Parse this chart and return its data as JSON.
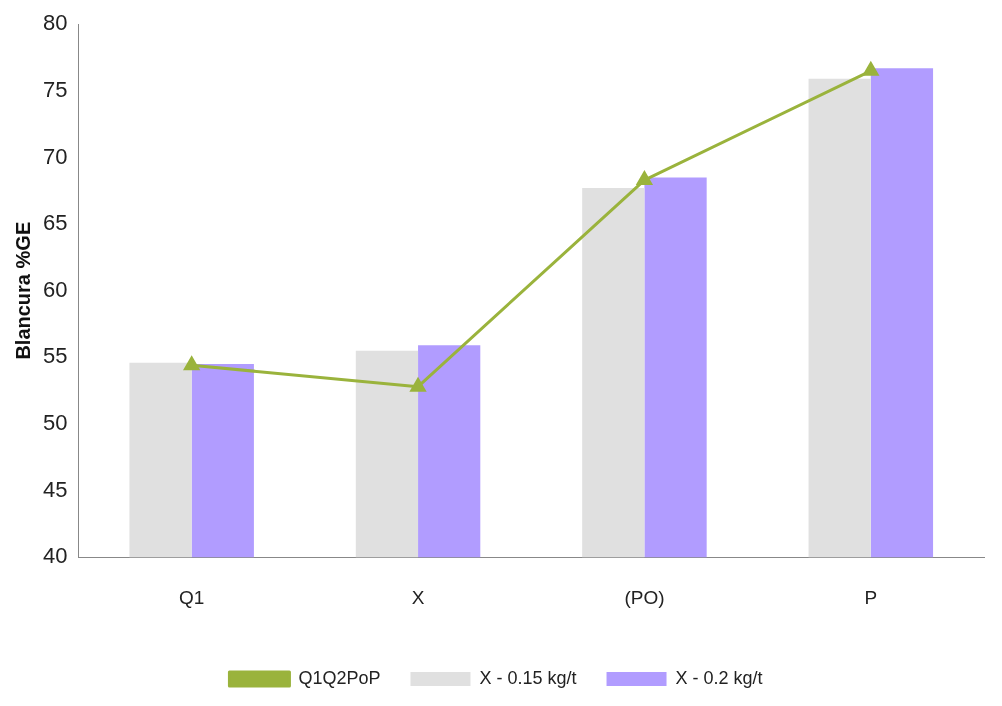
{
  "chart_data": {
    "type": "bar",
    "ylabel": "Blancura %GE",
    "categories": [
      "Q1",
      "X",
      "(PO)",
      "P"
    ],
    "series": [
      {
        "name": "X - 0.15 kg/t",
        "color": "#e0e0e0",
        "values": [
          54.6,
          55.5,
          67.7,
          75.9
        ]
      },
      {
        "name": "X - 0.2 kg/t",
        "color": "#b19cff",
        "values": [
          54.5,
          55.9,
          68.5,
          76.7
        ]
      },
      {
        "name": "Q1Q2PoP",
        "type": "line",
        "color": "#9ab33c",
        "marker": "triangle",
        "values": [
          54.4,
          52.8,
          68.3,
          76.5
        ]
      }
    ],
    "ylim": [
      40,
      80
    ],
    "yticks": [
      40,
      45,
      50,
      55,
      60,
      65,
      70,
      75,
      80
    ],
    "grid": false,
    "legend": "bottom"
  }
}
